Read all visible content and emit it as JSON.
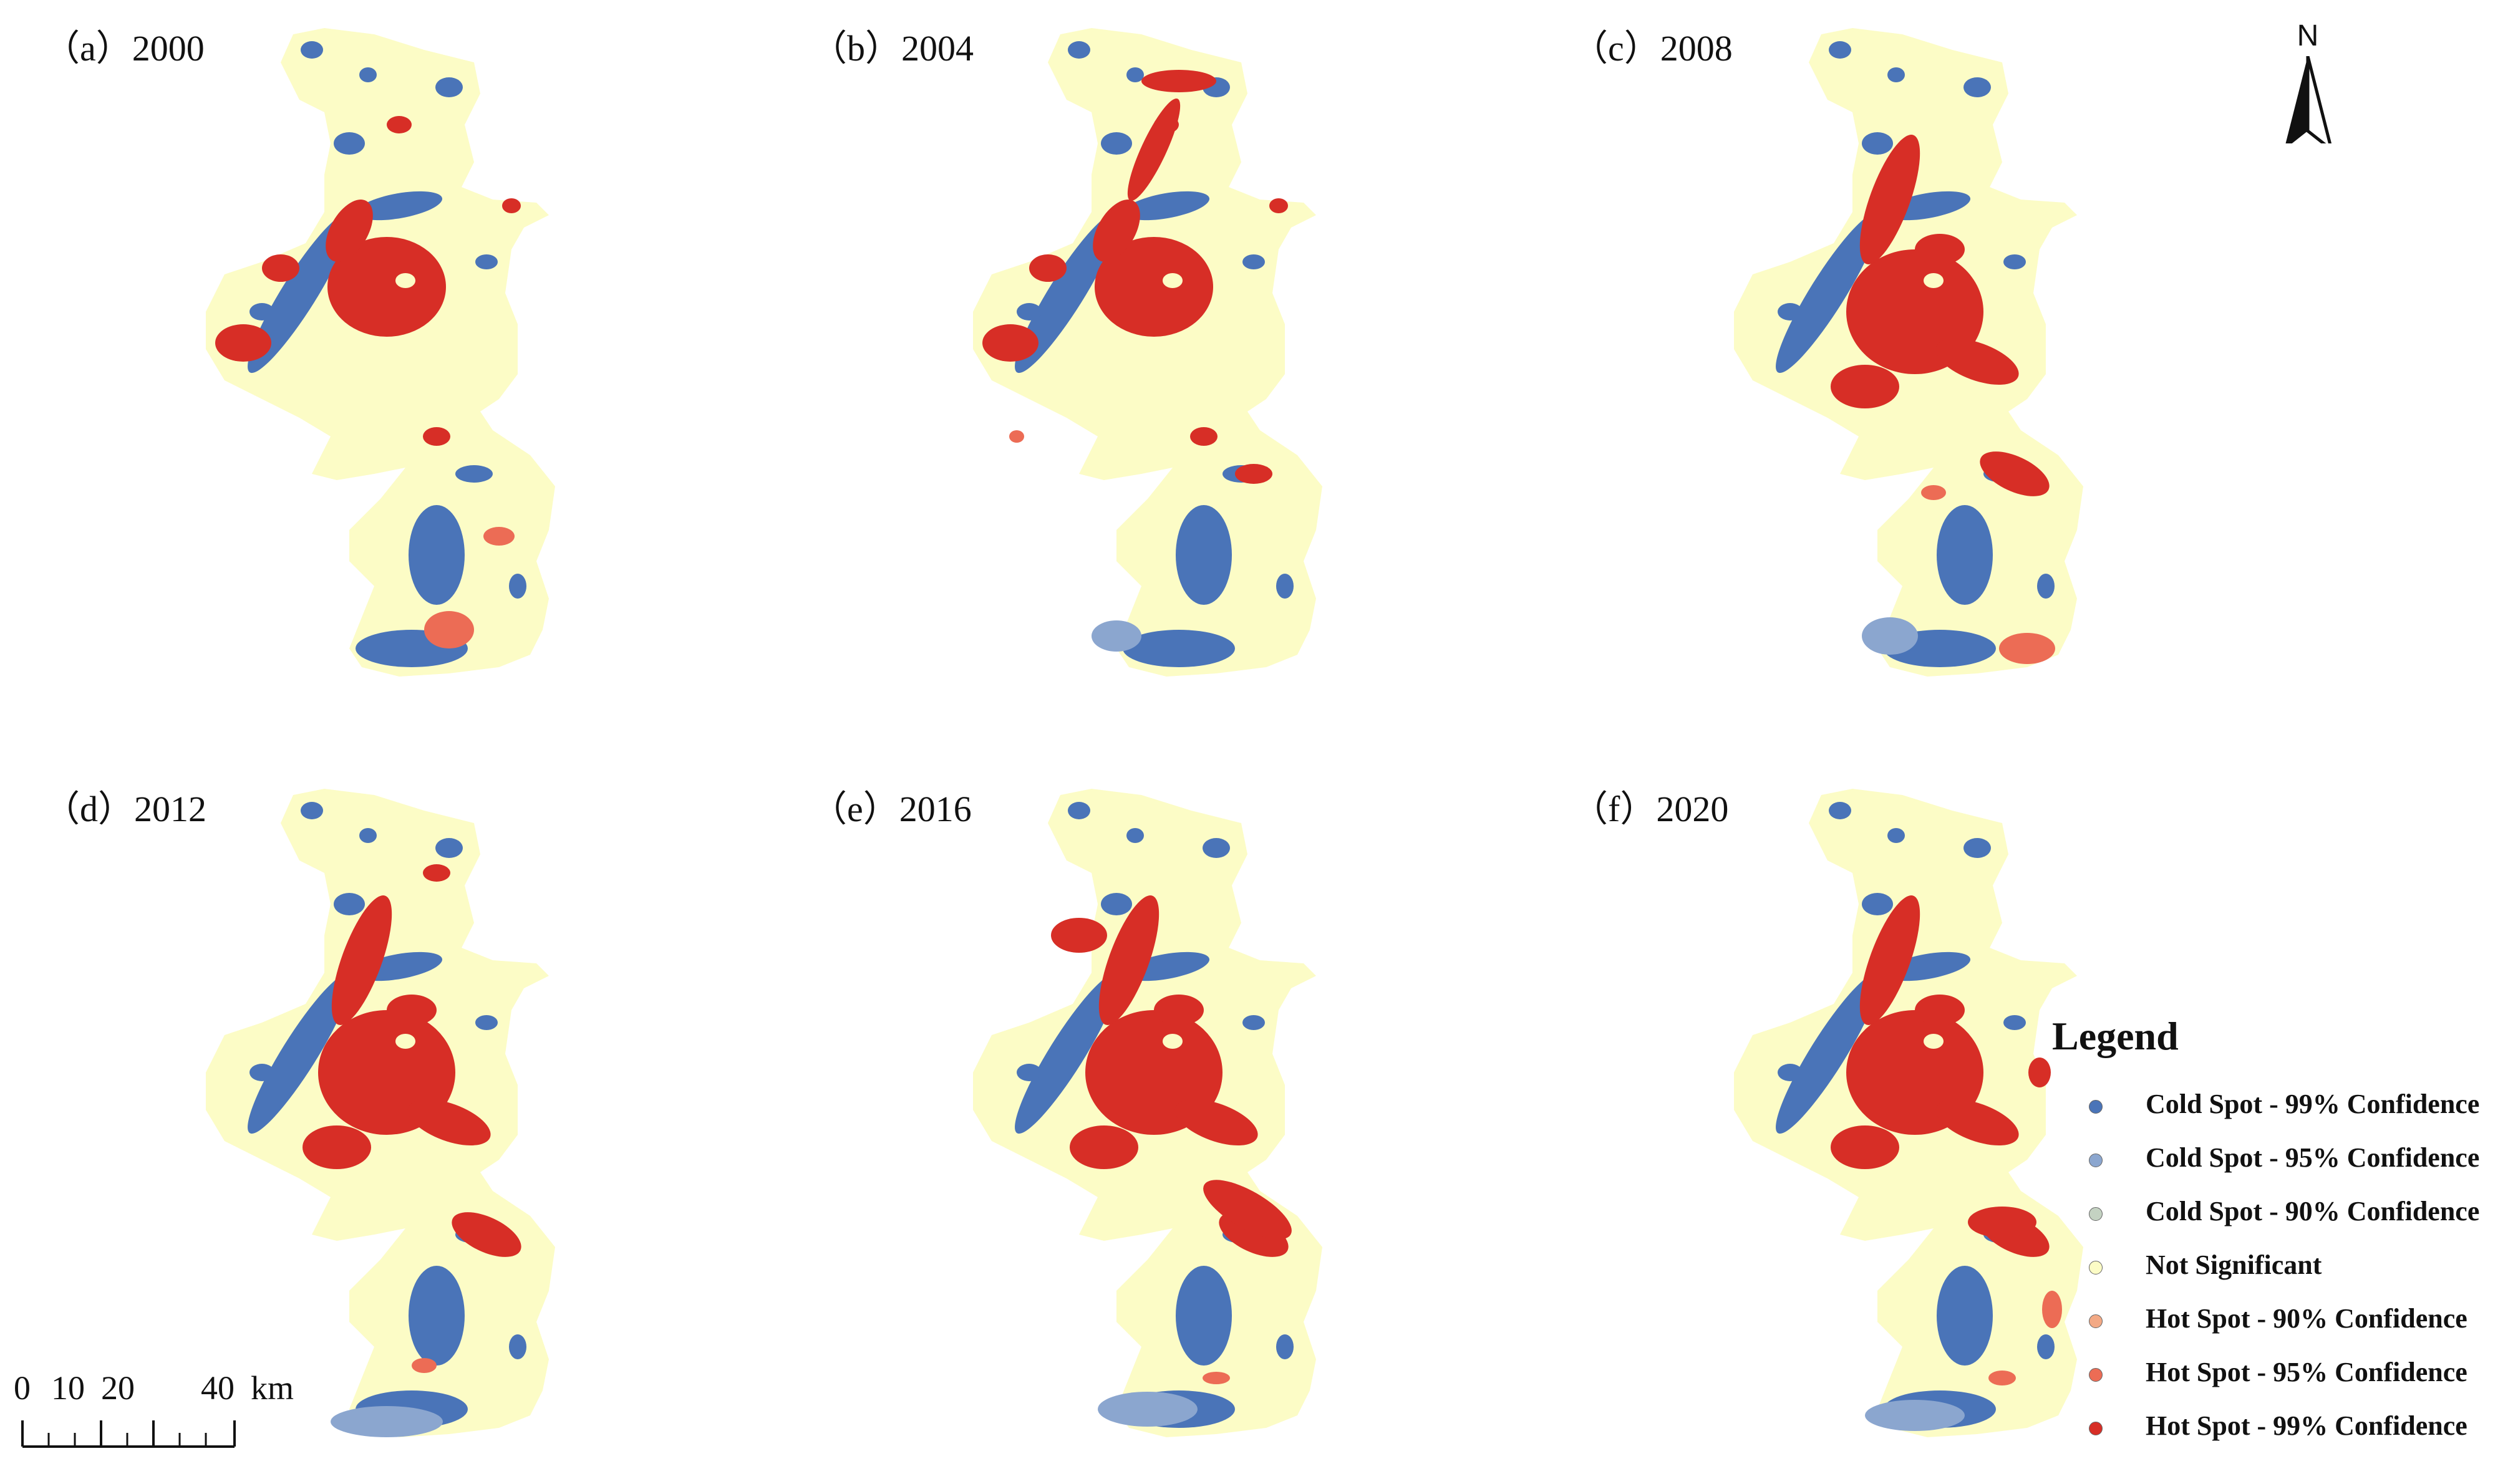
{
  "panels": [
    {
      "label": "（a）2000"
    },
    {
      "label": "（b）2004"
    },
    {
      "label": "（c）2008"
    },
    {
      "label": "（d）2012"
    },
    {
      "label": "（e）2016"
    },
    {
      "label": "（f）2020"
    }
  ],
  "north_arrow": {
    "letter": "N"
  },
  "scale_bar": {
    "ticks": [
      "0",
      "10",
      "20",
      "40"
    ],
    "unit": "km"
  },
  "legend": {
    "title": "Legend",
    "items": [
      {
        "label": "Cold Spot - 99% Confidence",
        "color": "#4a74b8"
      },
      {
        "label": "Cold Spot - 95% Confidence",
        "color": "#8ba6cf"
      },
      {
        "label": "Cold Spot - 90% Confidence",
        "color": "#c4d2c2"
      },
      {
        "label": "Not Significant",
        "color": "#fcfcc6"
      },
      {
        "label": "Hot Spot - 90% Confidence",
        "color": "#f3a985"
      },
      {
        "label": "Hot Spot - 95% Confidence",
        "color": "#ec6c55"
      },
      {
        "label": "Hot Spot - 99% Confidence",
        "color": "#d72e26"
      }
    ]
  },
  "colors": {
    "cold99": "#4a74b8",
    "cold95": "#8ba6cf",
    "notsig": "#fcfcc6",
    "hot90": "#f3a985",
    "hot95": "#ec6c55",
    "hot99": "#d72e26"
  }
}
